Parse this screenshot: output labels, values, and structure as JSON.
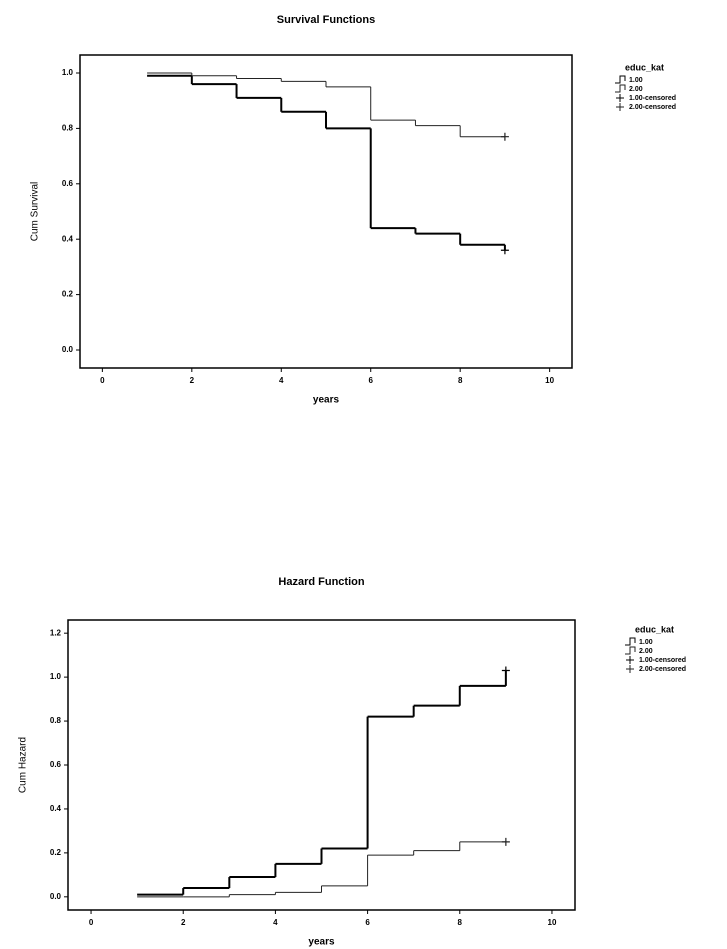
{
  "chart_data": [
    {
      "type": "step",
      "title": "Survival Functions",
      "x_label": "years",
      "y_label": "Cum Survival",
      "legend_title": "educ_kat",
      "xlim": [
        -0.5,
        10.5
      ],
      "xticks": [
        0,
        2,
        4,
        6,
        8,
        10
      ],
      "ylim": [
        -0.065,
        1.065
      ],
      "yticks": [
        {
          "value": 0,
          "label": "0.0"
        },
        0.2,
        0.4,
        0.6,
        0.8,
        {
          "value": 1,
          "label": "1.0"
        }
      ],
      "series": [
        {
          "name": "1.00",
          "style": "step",
          "color": "#000000",
          "x": [
            1,
            2,
            3,
            4,
            5,
            6,
            7,
            8,
            9
          ],
          "values": [
            0.99,
            0.96,
            0.91,
            0.86,
            0.8,
            0.44,
            0.42,
            0.38,
            0.36
          ]
        },
        {
          "name": "2.00",
          "style": "step",
          "color": "#222222",
          "x": [
            1,
            2,
            3,
            4,
            5,
            6,
            7,
            8,
            9
          ],
          "values": [
            1,
            0.99,
            0.98,
            0.97,
            0.95,
            0.83,
            0.81,
            0.77,
            0.77
          ]
        },
        {
          "name": "1.00-censored",
          "style": "plus",
          "color": "#000000",
          "x": [
            9
          ],
          "values": [
            0.36
          ]
        },
        {
          "name": "2.00-censored",
          "style": "plus",
          "color": "#222222",
          "x": [
            9
          ],
          "values": [
            0.77
          ]
        }
      ]
    },
    {
      "type": "step",
      "title": "Hazard Function",
      "x_label": "years",
      "y_label": "Cum Hazard",
      "legend_title": "educ_kat",
      "xlim": [
        -0.5,
        10.5
      ],
      "xticks": [
        0,
        2,
        4,
        6,
        8,
        10
      ],
      "ylim": [
        -0.06,
        1.26
      ],
      "yticks": [
        {
          "value": 0,
          "label": "0.0"
        },
        0.2,
        0.4,
        0.6,
        0.8,
        {
          "value": 1,
          "label": "1.0"
        },
        1.2
      ],
      "series": [
        {
          "name": "1.00",
          "style": "step",
          "color": "#000000",
          "x": [
            1,
            2,
            3,
            4,
            5,
            6,
            7,
            8,
            9
          ],
          "values": [
            0.01,
            0.04,
            0.09,
            0.15,
            0.22,
            0.82,
            0.87,
            0.96,
            1.03
          ]
        },
        {
          "name": "2.00",
          "style": "step",
          "color": "#222222",
          "x": [
            1,
            2,
            3,
            4,
            5,
            6,
            7,
            8,
            9
          ],
          "values": [
            0,
            0,
            0.01,
            0.02,
            0.05,
            0.19,
            0.21,
            0.25,
            0.25
          ]
        },
        {
          "name": "1.00-censored",
          "style": "plus",
          "color": "#000000",
          "x": [
            9
          ],
          "values": [
            1.03
          ]
        },
        {
          "name": "2.00-censored",
          "style": "plus",
          "color": "#222222",
          "x": [
            9
          ],
          "values": [
            0.25
          ]
        }
      ]
    }
  ]
}
